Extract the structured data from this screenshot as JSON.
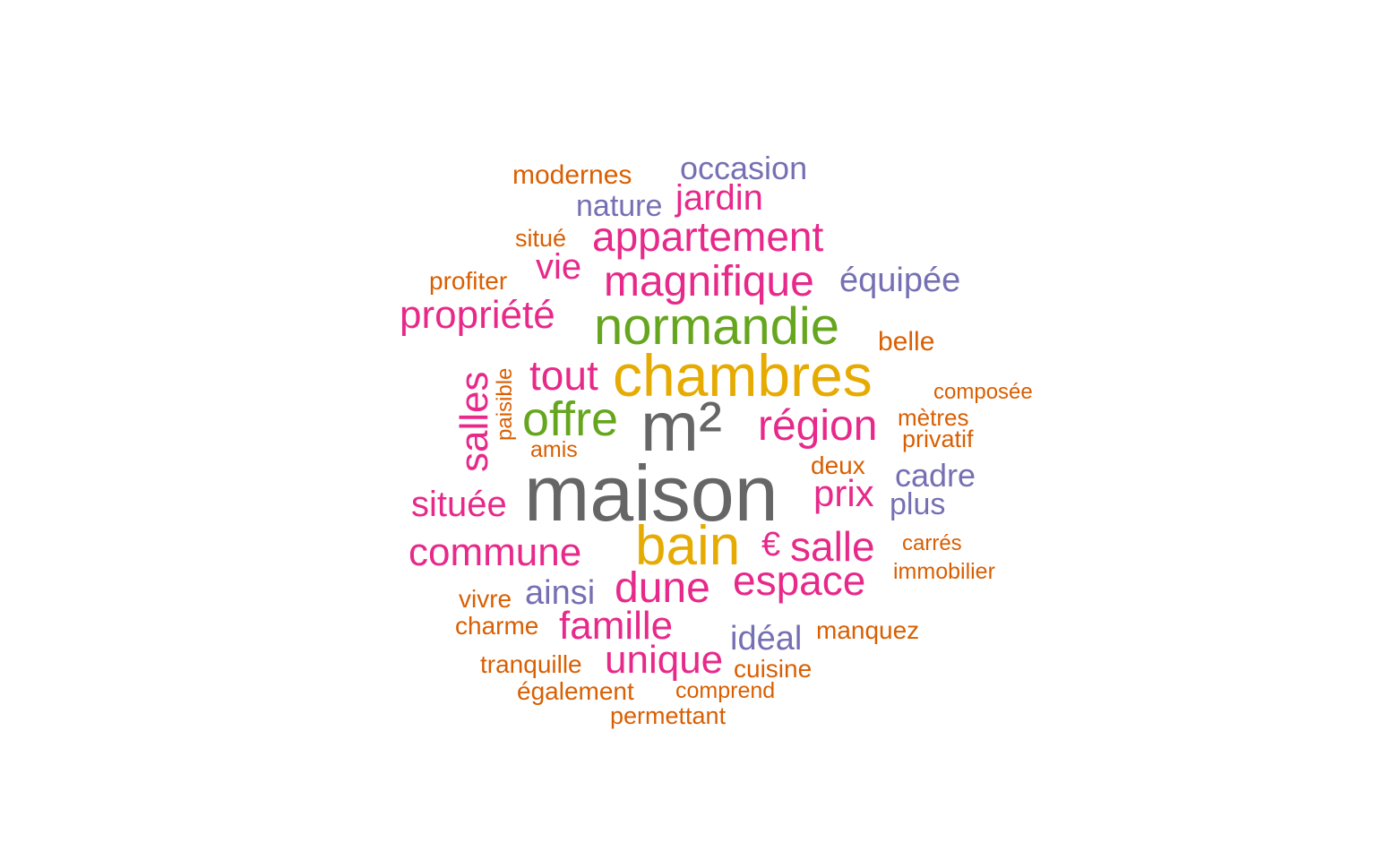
{
  "colors": {
    "gray": "#666666",
    "pink": "#e7298a",
    "green": "#66a61e",
    "yellow": "#e6ab02",
    "purple": "#7570b3",
    "orange": "#d95f02",
    "background": "#ffffff"
  },
  "words": {
    "maison": "maison",
    "m2": "m²",
    "chambres": "chambres",
    "normandie": "normandie",
    "bain": "bain",
    "offre": "offre",
    "region": "région",
    "tout": "tout",
    "salles": "salles",
    "magnifique": "magnifique",
    "appartement": "appartement",
    "propriete": "propriété",
    "commune": "commune",
    "dune": "dune",
    "espace": "espace",
    "salle": "salle",
    "euro": "€",
    "prix": "prix",
    "situee": "située",
    "famille": "famille",
    "unique": "unique",
    "jardin": "jardin",
    "vie": "vie",
    "ainsi": "ainsi",
    "ideal": "idéal",
    "equipee": "équipée",
    "occasion": "occasion",
    "nature": "nature",
    "cadre": "cadre",
    "plus": "plus",
    "modernes": "modernes",
    "situe": "situé",
    "profiter": "profiter",
    "belle": "belle",
    "composee": "composée",
    "metres": "mètres",
    "privatif": "privatif",
    "deux": "deux",
    "amis": "amis",
    "paisible": "paisible",
    "carres": "carrés",
    "immobilier": "immobilier",
    "vivre": "vivre",
    "charme": "charme",
    "manquez": "manquez",
    "tranquille": "tranquille",
    "cuisine": "cuisine",
    "egalement": "également",
    "comprend": "comprend",
    "permettant": "permettant"
  }
}
